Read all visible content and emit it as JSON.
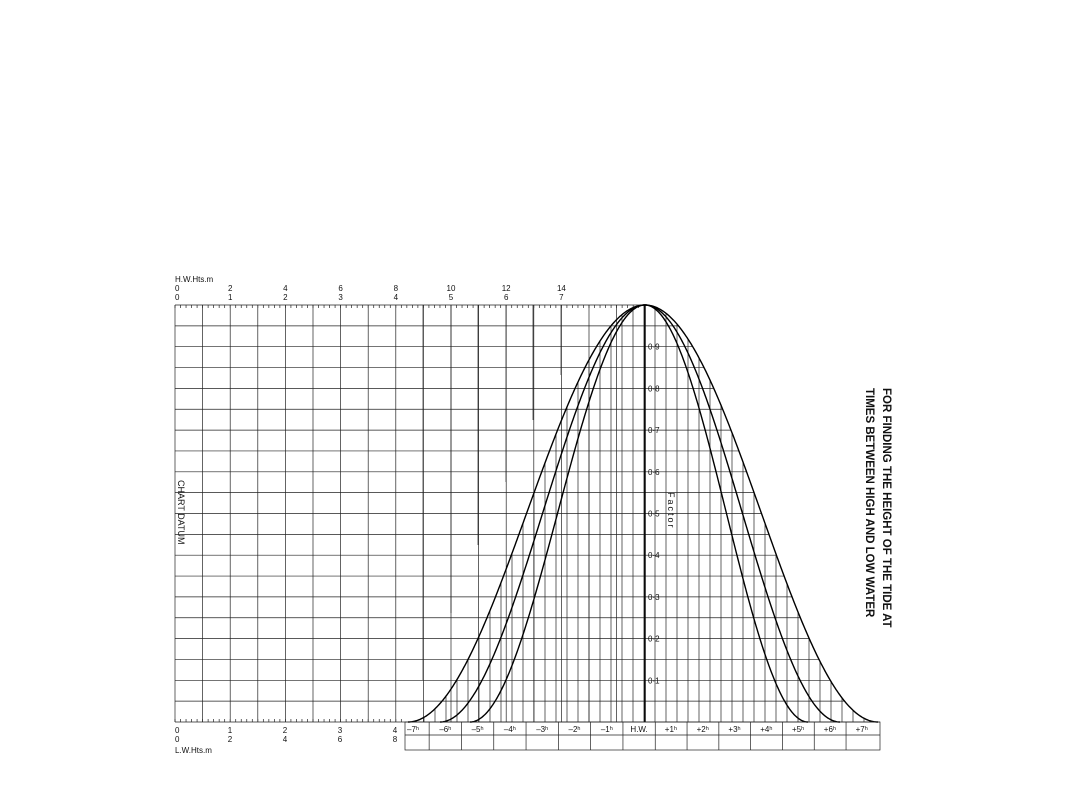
{
  "title": {
    "lines": [
      "FOR FINDING THE HEIGHT OF THE TIDE AT",
      "TIMES BETWEEN HIGH AND LOW WATER"
    ]
  },
  "top_scale": {
    "label": "H.W.Hts.m",
    "row1": [
      "0",
      "2",
      "4",
      "6",
      "8",
      "10",
      "12",
      "14"
    ],
    "row2": [
      "0",
      "1",
      "2",
      "3",
      "4",
      "5",
      "6",
      "7"
    ]
  },
  "bottom_scale": {
    "label": "L.W.Hts.m",
    "row1": [
      "0",
      "1",
      "2",
      "3",
      "4"
    ],
    "row2": [
      "0",
      "2",
      "4",
      "6",
      "8"
    ]
  },
  "datum_label": "CHART DATUM",
  "factor": {
    "label": "Factor",
    "ticks": [
      "0·1",
      "0·2",
      "0·3",
      "0·4",
      "0·5",
      "0·6",
      "0·7",
      "0·8",
      "0·9"
    ]
  },
  "time_axis": [
    "–7ʰ",
    "–6ʰ",
    "–5ʰ",
    "–4ʰ",
    "–3ʰ",
    "–2ʰ",
    "–1ʰ",
    "H.W.",
    "+1ʰ",
    "+2ʰ",
    "+3ʰ",
    "+4ʰ",
    "+5ʰ",
    "+6ʰ",
    "+7ʰ"
  ]
}
